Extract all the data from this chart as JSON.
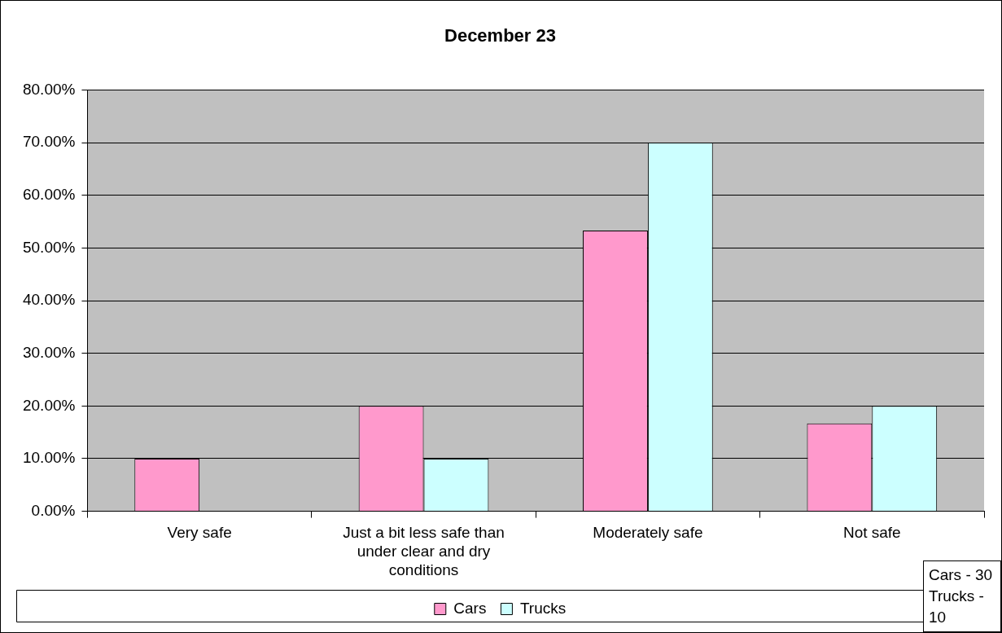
{
  "chart_data": {
    "type": "bar",
    "title": "December 23",
    "categories": [
      "Very safe",
      "Just a bit less safe than under clear and dry conditions",
      "Moderately safe",
      "Not safe"
    ],
    "series": [
      {
        "name": "Cars",
        "color": "#ff99cc",
        "values": [
          10,
          20,
          53.3,
          16.7
        ]
      },
      {
        "name": "Trucks",
        "color": "#ccffff",
        "values": [
          0,
          10,
          70,
          20
        ]
      }
    ],
    "ylim": [
      0,
      80
    ],
    "yticks": [
      {
        "value": 0,
        "label": "0.00%"
      },
      {
        "value": 10,
        "label": "10.00%"
      },
      {
        "value": 20,
        "label": "20.00%"
      },
      {
        "value": 30,
        "label": "30.00%"
      },
      {
        "value": 40,
        "label": "40.00%"
      },
      {
        "value": 50,
        "label": "50.00%"
      },
      {
        "value": 60,
        "label": "60.00%"
      },
      {
        "value": 70,
        "label": "70.00%"
      },
      {
        "value": 80,
        "label": "80.00%"
      }
    ],
    "grid": "y",
    "legend": "bottom",
    "annotations": [
      "Cars - 30",
      "Trucks - 10"
    ]
  }
}
